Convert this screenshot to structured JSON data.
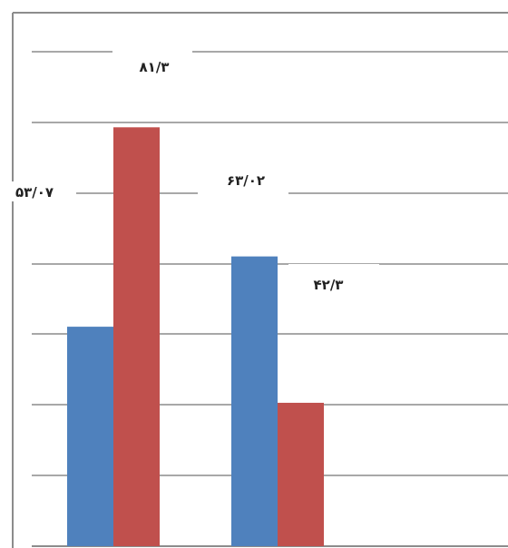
{
  "chart_data": {
    "type": "bar",
    "categories": [
      "",
      ""
    ],
    "series": [
      {
        "values": [
          53.07,
          63.02
        ],
        "labels": [
          "۵۳/۰۷",
          "۶۳/۰۲"
        ],
        "color": "#4f81bd"
      },
      {
        "values": [
          81.3,
          42.3
        ],
        "labels": [
          "۸۱/۳",
          "۴۲/۳"
        ],
        "color": "#c0504d"
      }
    ],
    "ylim": [
      22,
      92
    ],
    "grid": true,
    "gridline_color": "#8c8c8c",
    "axis_color": "#8c8c8c",
    "frame_color": "#8c8c8c",
    "legend": "none"
  }
}
